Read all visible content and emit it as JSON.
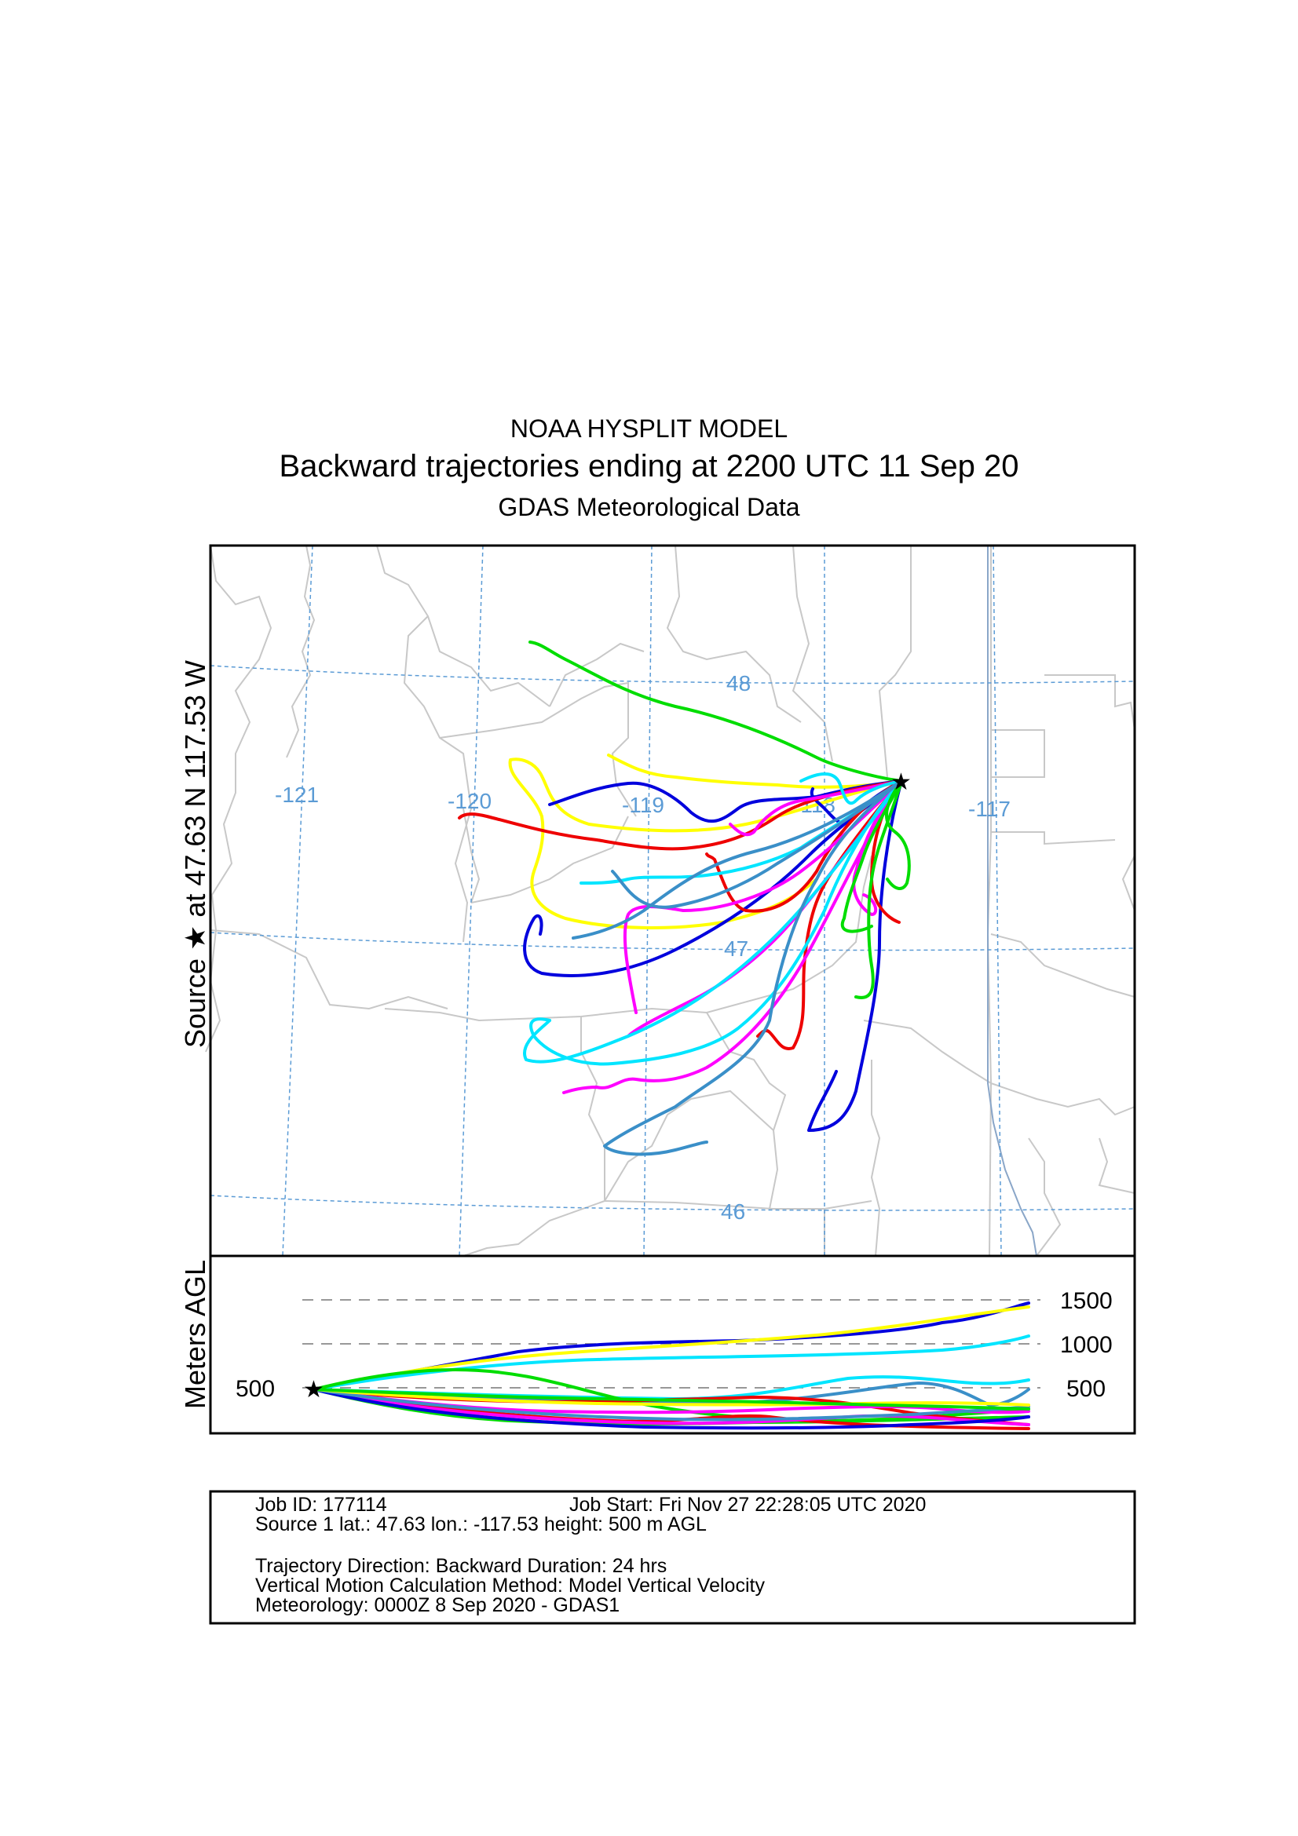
{
  "title": {
    "line1": "NOAA HYSPLIT MODEL",
    "line2": "Backward trajectories ending at 2200 UTC 11 Sep 20",
    "line3": "GDAS Meteorological Data"
  },
  "source_label": "Source ★  at   47.63 N  117.53 W",
  "height_label": "Meters AGL",
  "map": {
    "lon_labels": [
      "-121",
      "-120",
      "-119",
      "-118",
      "-117"
    ],
    "lat_labels": [
      "48",
      "47",
      "46"
    ],
    "grid_color": "#5b9bd5",
    "border_color": "#c8c8c8",
    "river_color": "#8aa6c8"
  },
  "height_axis": {
    "levels": [
      "1500",
      "1000",
      "500"
    ],
    "start_label": "500"
  },
  "trajectory_colors": [
    "#0000dd",
    "#ffff00",
    "#00e5ff",
    "#ee0000",
    "#ff00ff",
    "#00dd00",
    "#3a8fc8"
  ],
  "info": {
    "job_id": "Job ID: 177114",
    "job_start": "Job Start: Fri Nov 27 22:28:05 UTC 2020",
    "source": "Source 1       lat.: 47.63    lon.: -117.53      height: 500 m AGL",
    "direction": "Trajectory Direction: Backward       Duration: 24 hrs",
    "vertical": "Vertical Motion Calculation Method:        Model Vertical Velocity",
    "meteorology": "Meteorology: 0000Z  8 Sep 2020 - GDAS1"
  }
}
